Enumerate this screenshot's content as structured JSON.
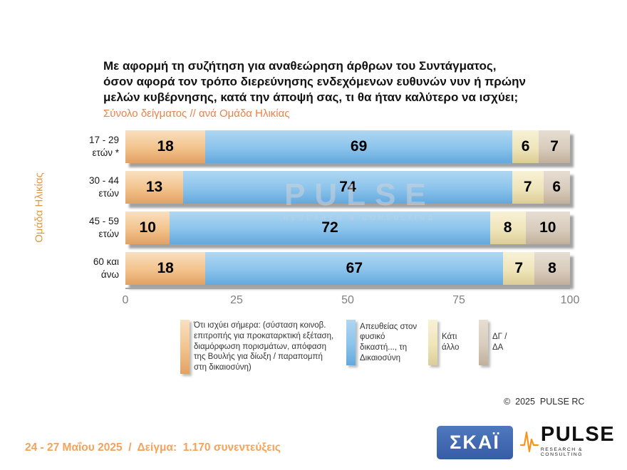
{
  "header": {
    "title": "Με αφορμή τη συζήτηση για αναθεώρηση άρθρων του Συντάγματος,\nόσον αφορά τον τρόπο διερεύνησης ενδεχόμενων ευθυνών νυν ή πρώην\nμελών κυβέρνησης, κατά την άποψή σας, τι θα ήταν καλύτερο να ισχύει;",
    "subtitle": "Σύνολο δείγματος // ανά Ομάδα Ηλικίας"
  },
  "chart_data": {
    "type": "bar",
    "orientation": "horizontal",
    "stacked": true,
    "ylabel": "Ομάδα Ηλικίας",
    "xlim": [
      0,
      100
    ],
    "xticks": [
      0,
      25,
      50,
      75,
      100
    ],
    "grid": false,
    "legend_position": "bottom",
    "categories": [
      "17 - 29\nετών *",
      "30 - 44\nετών",
      "45 - 59\nετών",
      "60 και\nάνω"
    ],
    "series": [
      {
        "name": "Ότι ισχύει σήμερα: (σύσταση κοινοβ. επιτροπής για προκαταρκτική εξέταση, διαμόρφωση πορισμάτων, απόφαση της Βουλής για δίωξη / παραπομπή στη δικαιοσύνη)",
        "values": [
          18,
          13,
          10,
          18
        ],
        "colors": {
          "light": "#F9E0C0",
          "mid": "#F2C28B",
          "dark": "#E2A164"
        }
      },
      {
        "name": "Απευθείας στον φυσικό δικαστή..., τη Δικαιοσύνη",
        "values": [
          69,
          74,
          72,
          67
        ],
        "colors": {
          "light": "#AFD7F2",
          "mid": "#8AC3EB",
          "dark": "#63A8DD"
        }
      },
      {
        "name": "Κάτι άλλο",
        "values": [
          6,
          7,
          8,
          7
        ],
        "colors": {
          "light": "#F7F1D6",
          "mid": "#EFE5BA",
          "dark": "#DCCD97"
        }
      },
      {
        "name": "ΔΓ / ΔΑ",
        "values": [
          7,
          6,
          10,
          8
        ],
        "colors": {
          "light": "#E6DED2",
          "mid": "#D8CCBC",
          "dark": "#C1B09B"
        }
      }
    ],
    "watermark": {
      "big": "PULSE",
      "small": "RESEARCH & CONSULTING"
    }
  },
  "footer": {
    "copyright": "©  2025  PULSE RC",
    "note": "24 - 27 Μαΐου 2025  /  Δείγμα:  1.170 συνεντεύξεις"
  },
  "logos": {
    "skai": "ΣΚΑΪ",
    "pulse_word": "PULSE",
    "pulse_tagline": "RESEARCH & CONSULTING"
  },
  "accent_colors": {
    "subtitle_orange": "#E8834B",
    "footer_orange": "#F5A25B",
    "skai_blue": "#3A5FA9",
    "pulse_orange": "#F7941D"
  }
}
